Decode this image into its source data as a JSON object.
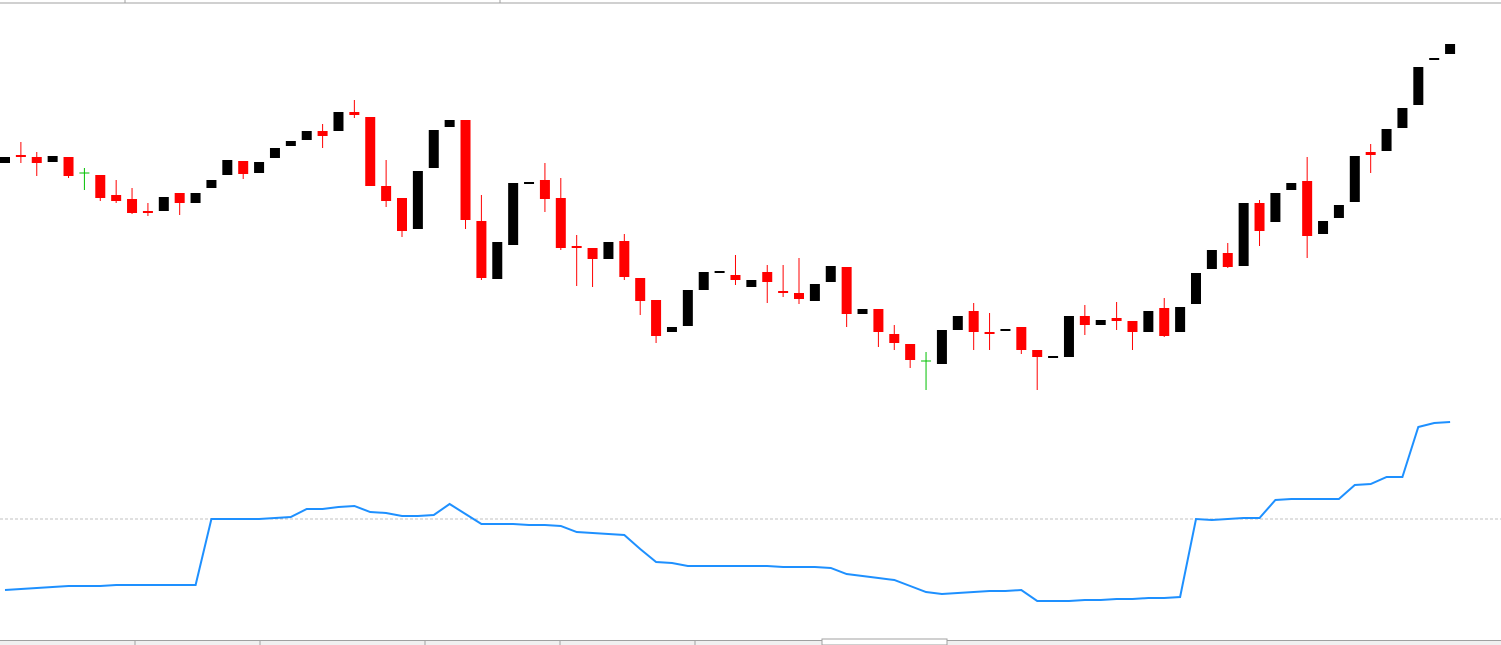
{
  "chart_data": [
    {
      "type": "candlestick",
      "up_color": "#000000",
      "down_color": "#ff0000",
      "doji_color": "#00c000",
      "ylim": [
        0,
        400
      ],
      "open": [
        237,
        245,
        243,
        238,
        243,
        227,
        225,
        205,
        201,
        189,
        189,
        207,
        197,
        212,
        225,
        239,
        227,
        242,
        254,
        260,
        269,
        269,
        288,
        283,
        214,
        202,
        171,
        232,
        273,
        280,
        179,
        121,
        155,
        217,
        220,
        202,
        154,
        152,
        141,
        159,
        122,
        100,
        68,
        74,
        110,
        128,
        125,
        113,
        128,
        109,
        107,
        99,
        118,
        133,
        86,
        91,
        66,
        56,
        39,
        36,
        70,
        89,
        68,
        70,
        73,
        50,
        43,
        43,
        84,
        75,
        82,
        79,
        68,
        92,
        68,
        96,
        131,
        147,
        134,
        197,
        178,
        210,
        219,
        166,
        182,
        198,
        248,
        249,
        272,
        295,
        340,
        346
      ],
      "high": [
        243,
        258,
        248,
        244,
        243,
        232,
        225,
        220,
        212,
        197,
        203,
        207,
        207,
        220,
        240,
        239,
        238,
        252,
        259,
        269,
        276,
        288,
        300,
        283,
        240,
        202,
        229,
        270,
        280,
        280,
        205,
        158,
        217,
        218,
        237,
        222,
        165,
        152,
        158,
        166,
        122,
        100,
        73,
        110,
        128,
        129,
        145,
        120,
        135,
        135,
        142,
        116,
        134,
        133,
        91,
        91,
        75,
        56,
        48,
        70,
        84,
        97,
        87,
        71,
        73,
        50,
        44,
        84,
        95,
        80,
        98,
        79,
        89,
        102,
        93,
        127,
        150,
        157,
        197,
        200,
        207,
        217,
        243,
        179,
        195,
        244,
        256,
        271,
        292,
        333,
        342,
        356
      ],
      "low": [
        237,
        237,
        224,
        238,
        222,
        210,
        199,
        197,
        186,
        184,
        189,
        185,
        197,
        212,
        225,
        221,
        227,
        242,
        254,
        260,
        252,
        269,
        282,
        214,
        193,
        163,
        171,
        232,
        273,
        171,
        120,
        121,
        155,
        217,
        188,
        150,
        114,
        113,
        141,
        120,
        85,
        57,
        68,
        74,
        110,
        128,
        115,
        113,
        97,
        103,
        96,
        99,
        118,
        73,
        86,
        53,
        50,
        32,
        10,
        36,
        70,
        50,
        50,
        70,
        46,
        10,
        43,
        43,
        65,
        75,
        70,
        50,
        68,
        63,
        68,
        96,
        131,
        132,
        134,
        154,
        178,
        210,
        142,
        166,
        182,
        198,
        227,
        249,
        272,
        295,
        340,
        346
      ],
      "close": [
        243,
        243,
        237,
        244,
        224,
        227,
        202,
        199,
        187,
        187,
        203,
        197,
        207,
        220,
        240,
        226,
        238,
        252,
        259,
        269,
        264,
        288,
        285,
        214,
        199,
        169,
        229,
        270,
        280,
        180,
        122,
        158,
        217,
        218,
        201,
        152,
        152,
        141,
        158,
        123,
        99,
        64,
        73,
        110,
        128,
        129,
        120,
        120,
        118,
        107,
        101,
        116,
        134,
        86,
        91,
        68,
        57,
        40,
        39,
        70,
        84,
        68,
        67,
        71,
        50,
        43,
        44,
        84,
        75,
        80,
        79,
        68,
        89,
        64,
        93,
        127,
        150,
        133,
        197,
        169,
        207,
        217,
        164,
        179,
        195,
        244,
        245,
        271,
        292,
        333,
        342,
        356
      ]
    },
    {
      "type": "line",
      "color": "#1e90ff",
      "ylim": [
        0,
        240
      ],
      "level": 121,
      "level_color": "#c0c0c0",
      "values": [
        50,
        51,
        52,
        53,
        54,
        54,
        54,
        55,
        55,
        55,
        55,
        55,
        55,
        121,
        121,
        121,
        121,
        122,
        123,
        131,
        131,
        133,
        134,
        128,
        127,
        124,
        124,
        125,
        136,
        126,
        116,
        116,
        116,
        115,
        115,
        114,
        108,
        107,
        106,
        105,
        91,
        78,
        77,
        74,
        74,
        74,
        74,
        74,
        74,
        73,
        73,
        73,
        72,
        66,
        64,
        62,
        60,
        54,
        48,
        46,
        47,
        48,
        49,
        49,
        50,
        39,
        39,
        39,
        40,
        40,
        41,
        41,
        42,
        42,
        43,
        121,
        120,
        121,
        122,
        122,
        140,
        141,
        141,
        141,
        141,
        155,
        156,
        163,
        163,
        213,
        217,
        218
      ]
    }
  ]
}
